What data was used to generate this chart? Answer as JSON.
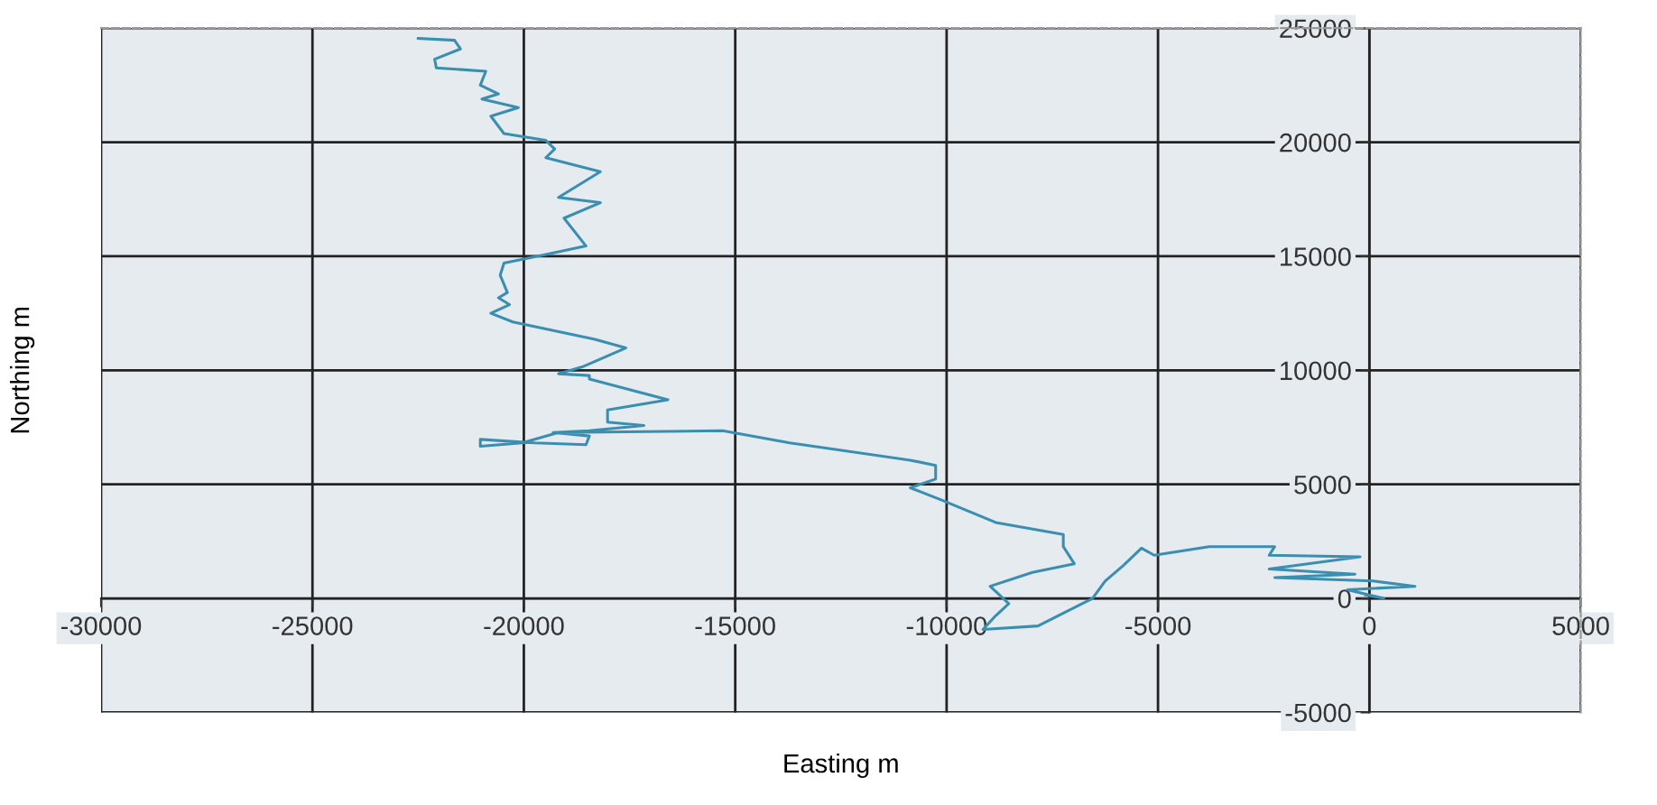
{
  "chart_data": {
    "type": "line",
    "xlabel": "Easting m",
    "ylabel": "Northing m",
    "xlim": [
      -30000,
      5000
    ],
    "ylim": [
      -5000,
      25000
    ],
    "xticks": [
      -30000,
      -25000,
      -20000,
      -15000,
      -10000,
      -5000,
      0,
      5000
    ],
    "yticks": [
      -5000,
      0,
      5000,
      10000,
      15000,
      20000,
      25000
    ],
    "grid": true,
    "marker": "none",
    "line_style": "solid",
    "series": [
      {
        "color": "#3a8fb0",
        "x": [
          -22500,
          -21640,
          -21500,
          -22110,
          -22070,
          -20900,
          -21030,
          -20600,
          -20990,
          -20130,
          -20780,
          -20470,
          -19480,
          -19270,
          -19480,
          -18190,
          -19180,
          -18190,
          -19050,
          -18530,
          -19480,
          -20470,
          -20560,
          -20390,
          -20600,
          -20340,
          -20780,
          -20260,
          -18320,
          -17590,
          -18620,
          -19180,
          -18450,
          -18450,
          -16590,
          -18020,
          -18020,
          -17160,
          -18450,
          -19310,
          -18450,
          -18530,
          -19740,
          -21030,
          -21030,
          -20040,
          -19180,
          -15300,
          -13710,
          -10860,
          -10260,
          -10260,
          -10860,
          -10130,
          -8840,
          -7240,
          -7240,
          -6980,
          -7970,
          -8970,
          -8530,
          -8840,
          -9140,
          -7840,
          -6550,
          -6250,
          -5820,
          -5390,
          -5090,
          -3790,
          -2240,
          -2370,
          -220,
          -2370,
          -340,
          -2240,
          90,
          1080,
          -520,
          340,
          -90
        ],
        "values": [
          24550,
          24470,
          24090,
          23640,
          23260,
          23110,
          22500,
          22120,
          21890,
          21520,
          21140,
          20380,
          20080,
          19700,
          19320,
          18710,
          17580,
          17350,
          16670,
          15450,
          15080,
          14700,
          14170,
          13410,
          13180,
          12880,
          12500,
          12120,
          11360,
          10980,
          10150,
          9850,
          9770,
          9620,
          8710,
          8260,
          7730,
          7580,
          7350,
          7270,
          7120,
          6740,
          6820,
          6970,
          6670,
          6820,
          7270,
          7350,
          6820,
          6060,
          5830,
          5230,
          4850,
          4320,
          3330,
          2800,
          2270,
          1520,
          1140,
          530,
          -230,
          -760,
          -1360,
          -1210,
          0,
          760,
          1440,
          2200,
          1890,
          2270,
          2270,
          1890,
          1820,
          1290,
          1060,
          910,
          760,
          530,
          380,
          0,
          150
        ]
      }
    ]
  }
}
